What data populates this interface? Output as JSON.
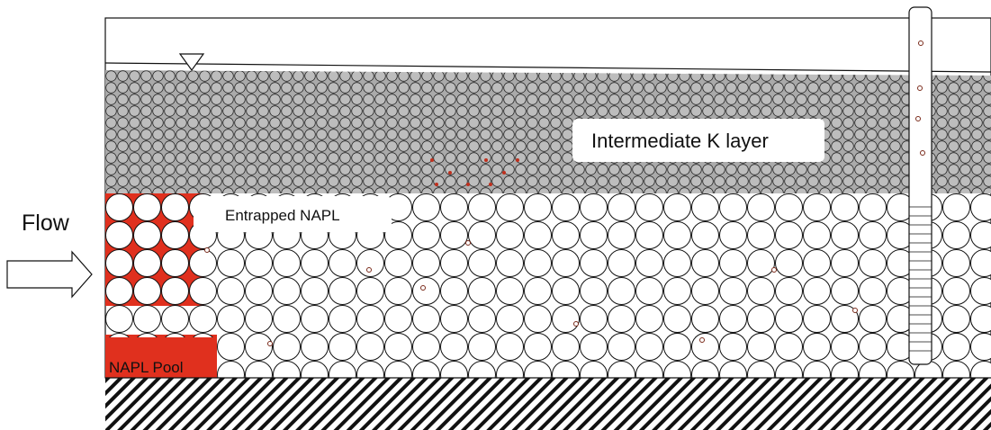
{
  "labels": {
    "flow": "Flow",
    "entrapped": "Entrapped NAPL",
    "layer": "Intermediate K layer",
    "pool": "NAPL Pool"
  }
}
